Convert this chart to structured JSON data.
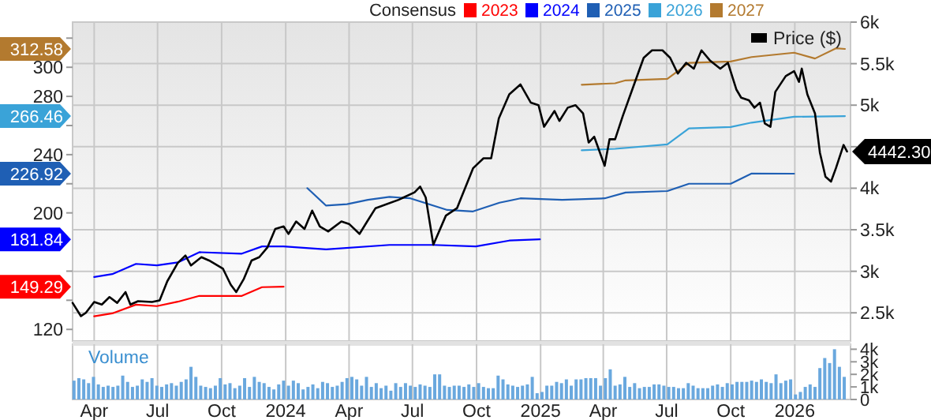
{
  "chart_data": [
    {
      "type": "line",
      "legend_title": "Consensus",
      "legend": "top",
      "grid": true,
      "tick_labels": "y",
      "xlim": [
        "2023-03-01",
        "2026-03-22"
      ],
      "xticks": [
        {
          "value": "2023-04-01",
          "label": null
        },
        {
          "value": "2023-07-01",
          "label": null
        },
        {
          "value": "2023-10-01",
          "label": null
        },
        {
          "value": "2024-01-01",
          "label": null
        },
        {
          "value": "2024-04-01",
          "label": null
        },
        {
          "value": "2024-07-01",
          "label": null
        },
        {
          "value": "2024-10-01",
          "label": null
        },
        {
          "value": "2025-01-01",
          "label": null
        },
        {
          "value": "2025-04-01",
          "label": null
        },
        {
          "value": "2025-07-01",
          "label": null
        },
        {
          "value": "2025-10-01",
          "label": null
        },
        {
          "value": "2026-01-01",
          "label": null
        }
      ],
      "ylim": [
        112,
        331
      ],
      "yticks": [
        120,
        {
          "value": 140,
          "label": null
        },
        {
          "value": 149.29,
          "label": "149.29"
        },
        {
          "value": 160,
          "label": null
        },
        {
          "value": 181.84,
          "label": "181.84"
        },
        200,
        {
          "value": 220,
          "label": null
        },
        {
          "value": 226.92,
          "label": "226.92"
        },
        240,
        {
          "value": 260,
          "label": null
        },
        {
          "value": 266.46,
          "label": "266.46"
        },
        280,
        300,
        {
          "value": 312.58,
          "label": "312.58"
        },
        {
          "value": 320,
          "label": null
        }
      ],
      "y2lim": [
        2160,
        6000
      ],
      "y2ticks": [
        {
          "value": 2500,
          "label": "2.5k"
        },
        {
          "value": 3000,
          "label": "3k"
        },
        {
          "value": 3500,
          "label": "3.5k"
        },
        {
          "value": 4000,
          "label": "4k"
        },
        {
          "value": 4500,
          "label": null
        },
        {
          "value": 5000,
          "label": "5k"
        },
        {
          "value": 5500,
          "label": "5.5k"
        },
        {
          "value": 6000,
          "label": "6k"
        }
      ],
      "series": [
        {
          "name": "2023",
          "color": "#ff0000",
          "x": [
            "2023-04-01",
            "2023-04-27",
            "2023-05-31",
            "2023-06-30",
            "2023-07-30",
            "2023-08-30",
            "2023-10-30",
            "2023-11-28",
            "2023-12-29"
          ],
          "values": [
            129,
            131,
            137,
            136,
            139,
            143,
            143,
            149,
            149.29
          ]
        },
        {
          "name": "2024",
          "color": "#0000ff",
          "x": [
            "2023-04-01",
            "2023-04-27",
            "2023-05-31",
            "2023-06-30",
            "2023-07-30",
            "2023-08-30",
            "2023-10-30",
            "2023-11-28",
            "2023-12-29",
            "2024-02-28",
            "2024-05-29",
            "2024-07-31",
            "2024-09-30",
            "2024-11-17",
            "2024-12-31"
          ],
          "values": [
            156,
            158,
            165,
            164,
            166,
            173,
            172,
            177,
            177,
            175,
            178,
            178,
            177,
            181,
            181.84
          ]
        },
        {
          "name": "2025",
          "color": "#1f5fb4",
          "x": [
            "2024-02-01",
            "2024-02-28",
            "2024-03-29",
            "2024-04-28",
            "2024-05-29",
            "2024-06-28",
            "2024-08-20",
            "2024-09-26",
            "2024-11-03",
            "2024-12-03",
            "2025-02-01",
            "2025-04-03",
            "2025-05-03",
            "2025-07-02",
            "2025-08-02",
            "2025-10-01",
            "2025-10-31",
            "2025-12-31"
          ],
          "values": [
            217,
            205,
            206,
            209,
            211,
            210,
            202,
            201,
            207,
            210,
            209,
            210,
            214,
            215,
            220,
            220,
            227,
            226.92
          ]
        },
        {
          "name": "2026",
          "color": "#3aa3d8",
          "x": [
            "2025-03-01",
            "2025-04-18",
            "2025-07-02",
            "2025-08-02",
            "2025-10-01",
            "2025-10-31",
            "2025-12-31",
            "2026-03-14"
          ],
          "values": [
            243,
            244,
            247,
            258,
            259,
            262,
            266,
            266.46
          ]
        },
        {
          "name": "2027",
          "color": "#b37a2f",
          "x": [
            "2025-03-01",
            "2025-04-18",
            "2025-05-03",
            "2025-07-02",
            "2025-08-02",
            "2025-10-01",
            "2025-10-31",
            "2025-12-31",
            "2026-01-30",
            "2026-03-01",
            "2026-03-14"
          ],
          "values": [
            288,
            289,
            291,
            292,
            303,
            304,
            307,
            310,
            306,
            313,
            312.58
          ]
        },
        {
          "name": "Price ($)",
          "color": "#000000",
          "axis": "y2",
          "x": [
            "2023-03-01",
            "2023-03-13",
            "2023-03-20",
            "2023-04-01",
            "2023-04-12",
            "2023-04-23",
            "2023-05-04",
            "2023-05-16",
            "2023-05-23",
            "2023-06-03",
            "2023-06-23",
            "2023-07-04",
            "2023-07-15",
            "2023-07-30",
            "2023-08-10",
            "2023-08-18",
            "2023-09-02",
            "2023-09-13",
            "2023-10-03",
            "2023-10-14",
            "2023-10-22",
            "2023-11-02",
            "2023-11-13",
            "2023-11-24",
            "2023-12-06",
            "2023-12-17",
            "2023-12-29",
            "2024-01-05",
            "2024-01-16",
            "2024-01-28",
            "2024-02-08",
            "2024-02-19",
            "2024-03-02",
            "2024-03-21",
            "2024-04-01",
            "2024-04-16",
            "2024-04-27",
            "2024-05-09",
            "2024-06-11",
            "2024-07-04",
            "2024-07-12",
            "2024-07-20",
            "2024-07-31",
            "2024-08-18",
            "2024-09-03",
            "2024-09-26",
            "2024-10-11",
            "2024-10-22",
            "2024-11-02",
            "2024-11-17",
            "2024-12-03",
            "2024-12-18",
            "2024-12-29",
            "2025-01-06",
            "2025-01-21",
            "2025-01-28",
            "2025-02-09",
            "2025-02-20",
            "2025-03-03",
            "2025-03-11",
            "2025-03-19",
            "2025-04-03",
            "2025-04-10",
            "2025-04-18",
            "2025-04-29",
            "2025-05-14",
            "2025-05-29",
            "2025-06-10",
            "2025-06-25",
            "2025-07-06",
            "2025-07-17",
            "2025-07-29",
            "2025-08-09",
            "2025-08-20",
            "2025-09-01",
            "2025-09-16",
            "2025-09-27",
            "2025-10-09",
            "2025-10-16",
            "2025-10-27",
            "2025-11-04",
            "2025-11-12",
            "2025-11-19",
            "2025-11-27",
            "2025-12-04",
            "2025-12-19",
            "2025-12-31",
            "2026-01-07",
            "2026-01-11",
            "2026-01-19",
            "2026-01-30",
            "2026-02-06",
            "2026-02-14",
            "2026-02-22",
            "2026-03-01",
            "2026-03-12",
            "2026-03-17"
          ],
          "values": [
            2620,
            2460,
            2500,
            2630,
            2600,
            2690,
            2620,
            2750,
            2600,
            2640,
            2630,
            2650,
            2880,
            3100,
            3190,
            3070,
            3170,
            3130,
            3030,
            2840,
            2750,
            2910,
            3130,
            3170,
            3290,
            3510,
            3540,
            3450,
            3600,
            3510,
            3730,
            3540,
            3480,
            3600,
            3570,
            3450,
            3600,
            3760,
            3860,
            3950,
            4020,
            3890,
            3320,
            3670,
            3760,
            4240,
            4360,
            4360,
            4840,
            5130,
            5250,
            5030,
            5000,
            4740,
            4930,
            4810,
            4970,
            5000,
            4900,
            4550,
            4620,
            4270,
            4590,
            4590,
            4870,
            5220,
            5570,
            5660,
            5660,
            5570,
            5380,
            5510,
            5440,
            5660,
            5540,
            5440,
            5510,
            5190,
            5090,
            5060,
            4970,
            5030,
            4780,
            4740,
            5160,
            5350,
            5410,
            5280,
            5440,
            5130,
            4900,
            4430,
            4140,
            4080,
            4240,
            4520,
            4442.3
          ],
          "value_labels": [
            null,
            null,
            null,
            null,
            null,
            null,
            null,
            null,
            null,
            null,
            null,
            null,
            null,
            null,
            null,
            null,
            null,
            null,
            null,
            null,
            null,
            null,
            null,
            null,
            null,
            null,
            null,
            null,
            null,
            null,
            null,
            null,
            null,
            null,
            null,
            null,
            null,
            null,
            null,
            null,
            null,
            null,
            null,
            null,
            null,
            null,
            null,
            null,
            null,
            null,
            null,
            null,
            null,
            null,
            null,
            null,
            null,
            null,
            null,
            null,
            null,
            null,
            null,
            null,
            null,
            null,
            null,
            null,
            null,
            null,
            null,
            null,
            null,
            null,
            null,
            null,
            null,
            null,
            null,
            null,
            null,
            null,
            null,
            null,
            null,
            null,
            null,
            null,
            null,
            null,
            null,
            null,
            null,
            null,
            null,
            null,
            "4442.30"
          ]
        }
      ]
    },
    {
      "type": "bar",
      "ylabel": "Volume",
      "color": "#6aa8de",
      "grid": "x",
      "xlim": [
        "2023-03-01",
        "2026-03-22"
      ],
      "xticks": [
        {
          "value": "2023-04-01",
          "label": "Apr"
        },
        {
          "value": "2023-07-01",
          "label": "Jul"
        },
        {
          "value": "2023-10-01",
          "label": "Oct"
        },
        {
          "value": "2024-01-01",
          "label": "2024"
        },
        {
          "value": "2024-04-01",
          "label": "Apr"
        },
        {
          "value": "2024-07-01",
          "label": "Jul"
        },
        {
          "value": "2024-10-01",
          "label": "Oct"
        },
        {
          "value": "2025-01-01",
          "label": "2025"
        },
        {
          "value": "2025-04-01",
          "label": "Apr"
        },
        {
          "value": "2025-07-01",
          "label": "Jul"
        },
        {
          "value": "2025-10-01",
          "label": "Oct"
        },
        {
          "value": "2026-01-01",
          "label": "2026"
        }
      ],
      "ylim": [
        0,
        4400
      ],
      "yticks": [
        0,
        {
          "value": 1000,
          "label": "1k"
        },
        {
          "value": 2000,
          "label": "2k"
        },
        {
          "value": 3000,
          "label": "3k"
        },
        {
          "value": 4000,
          "label": "4k"
        }
      ],
      "x": [
        "2023-03-03",
        "2023-03-10",
        "2023-03-17",
        "2023-03-24",
        "2023-03-31",
        "2023-04-07",
        "2023-04-14",
        "2023-04-21",
        "2023-04-28",
        "2023-05-05",
        "2023-05-12",
        "2023-05-19",
        "2023-05-26",
        "2023-06-02",
        "2023-06-09",
        "2023-06-16",
        "2023-06-23",
        "2023-06-30",
        "2023-07-07",
        "2023-07-14",
        "2023-07-21",
        "2023-07-28",
        "2023-08-04",
        "2023-08-11",
        "2023-08-18",
        "2023-08-25",
        "2023-09-01",
        "2023-09-08",
        "2023-09-15",
        "2023-09-22",
        "2023-09-29",
        "2023-10-06",
        "2023-10-13",
        "2023-10-20",
        "2023-10-27",
        "2023-11-03",
        "2023-11-10",
        "2023-11-17",
        "2023-11-24",
        "2023-12-01",
        "2023-12-08",
        "2023-12-15",
        "2023-12-22",
        "2023-12-29",
        "2024-01-05",
        "2024-01-12",
        "2024-01-19",
        "2024-01-26",
        "2024-02-02",
        "2024-02-09",
        "2024-02-16",
        "2024-02-23",
        "2024-03-01",
        "2024-03-08",
        "2024-03-15",
        "2024-03-22",
        "2024-03-29",
        "2024-04-05",
        "2024-04-12",
        "2024-04-19",
        "2024-04-26",
        "2024-05-03",
        "2024-05-10",
        "2024-05-17",
        "2024-05-24",
        "2024-05-31",
        "2024-06-07",
        "2024-06-14",
        "2024-06-21",
        "2024-06-28",
        "2024-07-05",
        "2024-07-12",
        "2024-07-19",
        "2024-07-26",
        "2024-08-02",
        "2024-08-09",
        "2024-08-16",
        "2024-08-23",
        "2024-08-30",
        "2024-09-06",
        "2024-09-13",
        "2024-09-20",
        "2024-09-27",
        "2024-10-04",
        "2024-10-11",
        "2024-10-18",
        "2024-10-25",
        "2024-11-01",
        "2024-11-08",
        "2024-11-15",
        "2024-11-22",
        "2024-11-29",
        "2024-12-06",
        "2024-12-13",
        "2024-12-20",
        "2024-12-27",
        "2025-01-03",
        "2025-01-10",
        "2025-01-17",
        "2025-01-24",
        "2025-01-31",
        "2025-02-07",
        "2025-02-14",
        "2025-02-21",
        "2025-02-28",
        "2025-03-07",
        "2025-03-14",
        "2025-03-21",
        "2025-03-28",
        "2025-04-04",
        "2025-04-11",
        "2025-04-18",
        "2025-04-25",
        "2025-05-02",
        "2025-05-09",
        "2025-05-16",
        "2025-05-23",
        "2025-05-30",
        "2025-06-06",
        "2025-06-13",
        "2025-06-20",
        "2025-06-27",
        "2025-07-04",
        "2025-07-11",
        "2025-07-18",
        "2025-07-25",
        "2025-08-01",
        "2025-08-08",
        "2025-08-15",
        "2025-08-22",
        "2025-08-29",
        "2025-09-05",
        "2025-09-12",
        "2025-09-19",
        "2025-09-26",
        "2025-10-03",
        "2025-10-10",
        "2025-10-17",
        "2025-10-24",
        "2025-10-31",
        "2025-11-07",
        "2025-11-14",
        "2025-11-21",
        "2025-11-28",
        "2025-12-05",
        "2025-12-12",
        "2025-12-19",
        "2025-12-26",
        "2026-01-02",
        "2026-01-09",
        "2026-01-16",
        "2026-01-23",
        "2026-01-30",
        "2026-02-06",
        "2026-02-13",
        "2026-02-20",
        "2026-02-27",
        "2026-03-06",
        "2026-03-13"
      ],
      "values": [
        1500,
        1700,
        1600,
        1300,
        1800,
        1200,
        1000,
        1100,
        1000,
        1100,
        1900,
        1400,
        1000,
        1100,
        1600,
        1400,
        1700,
        1100,
        1000,
        1200,
        1300,
        1100,
        1400,
        1600,
        2600,
        1800,
        1100,
        1000,
        900,
        1100,
        1700,
        1200,
        1300,
        900,
        1100,
        1700,
        1000,
        1800,
        1400,
        1300,
        1000,
        800,
        1200,
        1500,
        1100,
        1500,
        1300,
        800,
        1000,
        1200,
        900,
        1400,
        1300,
        1000,
        1100,
        1400,
        1700,
        1800,
        1600,
        1100,
        1800,
        1000,
        1300,
        900,
        1100,
        700,
        1300,
        1000,
        1300,
        1100,
        1000,
        1200,
        1100,
        1000,
        2000,
        2000,
        1100,
        1000,
        1100,
        1100,
        1000,
        1200,
        1000,
        1300,
        1000,
        900,
        900,
        1900,
        1600,
        1200,
        1100,
        1000,
        1100,
        1200,
        1800,
        500,
        600,
        1100,
        1100,
        1400,
        1300,
        1600,
        1100,
        1600,
        1600,
        1700,
        1700,
        1700,
        1100,
        1700,
        2400,
        1100,
        1200,
        1800,
        1000,
        1300,
        900,
        1000,
        1000,
        1200,
        1200,
        1100,
        1000,
        1000,
        900,
        900,
        1300,
        1100,
        900,
        900,
        900,
        1100,
        1200,
        1000,
        1300,
        1200,
        1400,
        1400,
        1400,
        1500,
        1400,
        1600,
        1400,
        1300,
        2000,
        1300,
        1500,
        1600,
        400,
        600,
        1000,
        1200,
        1000,
        2500,
        3300,
        2900,
        4000,
        2600,
        1800
      ]
    }
  ]
}
